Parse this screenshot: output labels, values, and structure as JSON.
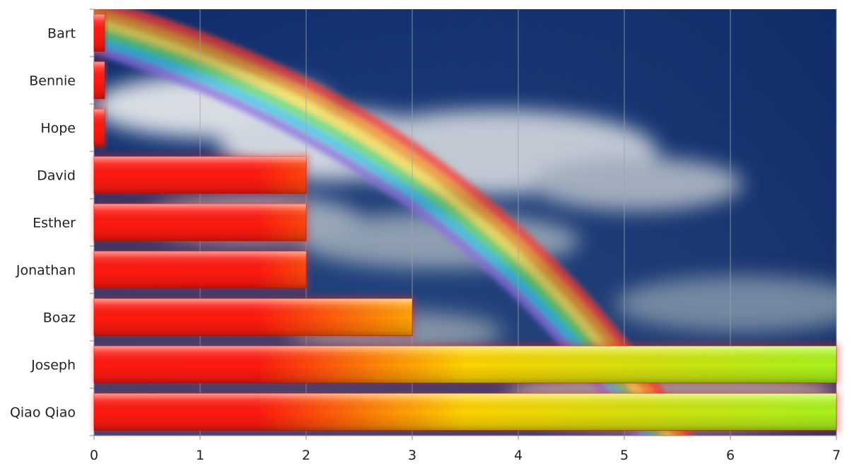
{
  "chart_data": {
    "type": "bar",
    "orientation": "horizontal",
    "categories": [
      "Bart",
      "Bennie",
      "Hope",
      "David",
      "Esther",
      "Jonathan",
      "Boaz",
      "Joseph",
      "Qiao Qiao"
    ],
    "values": [
      0.1,
      0.1,
      0.1,
      2,
      2,
      2,
      3,
      7,
      7
    ],
    "title": "",
    "xlabel": "",
    "ylabel": "",
    "xlim": [
      0,
      7
    ],
    "x_ticks": [
      "0",
      "1",
      "2",
      "3",
      "4",
      "5",
      "6",
      "7"
    ],
    "grid": "vertical",
    "legend": "none",
    "background": "sky with rainbow and clouds",
    "colors": {
      "bar_start": "#ff1a10",
      "bar_mid": "#ffd200",
      "bar_end": "#a8f21c",
      "sky_top": "#0d2a6b",
      "sky_bottom": "#4f6f93"
    }
  }
}
